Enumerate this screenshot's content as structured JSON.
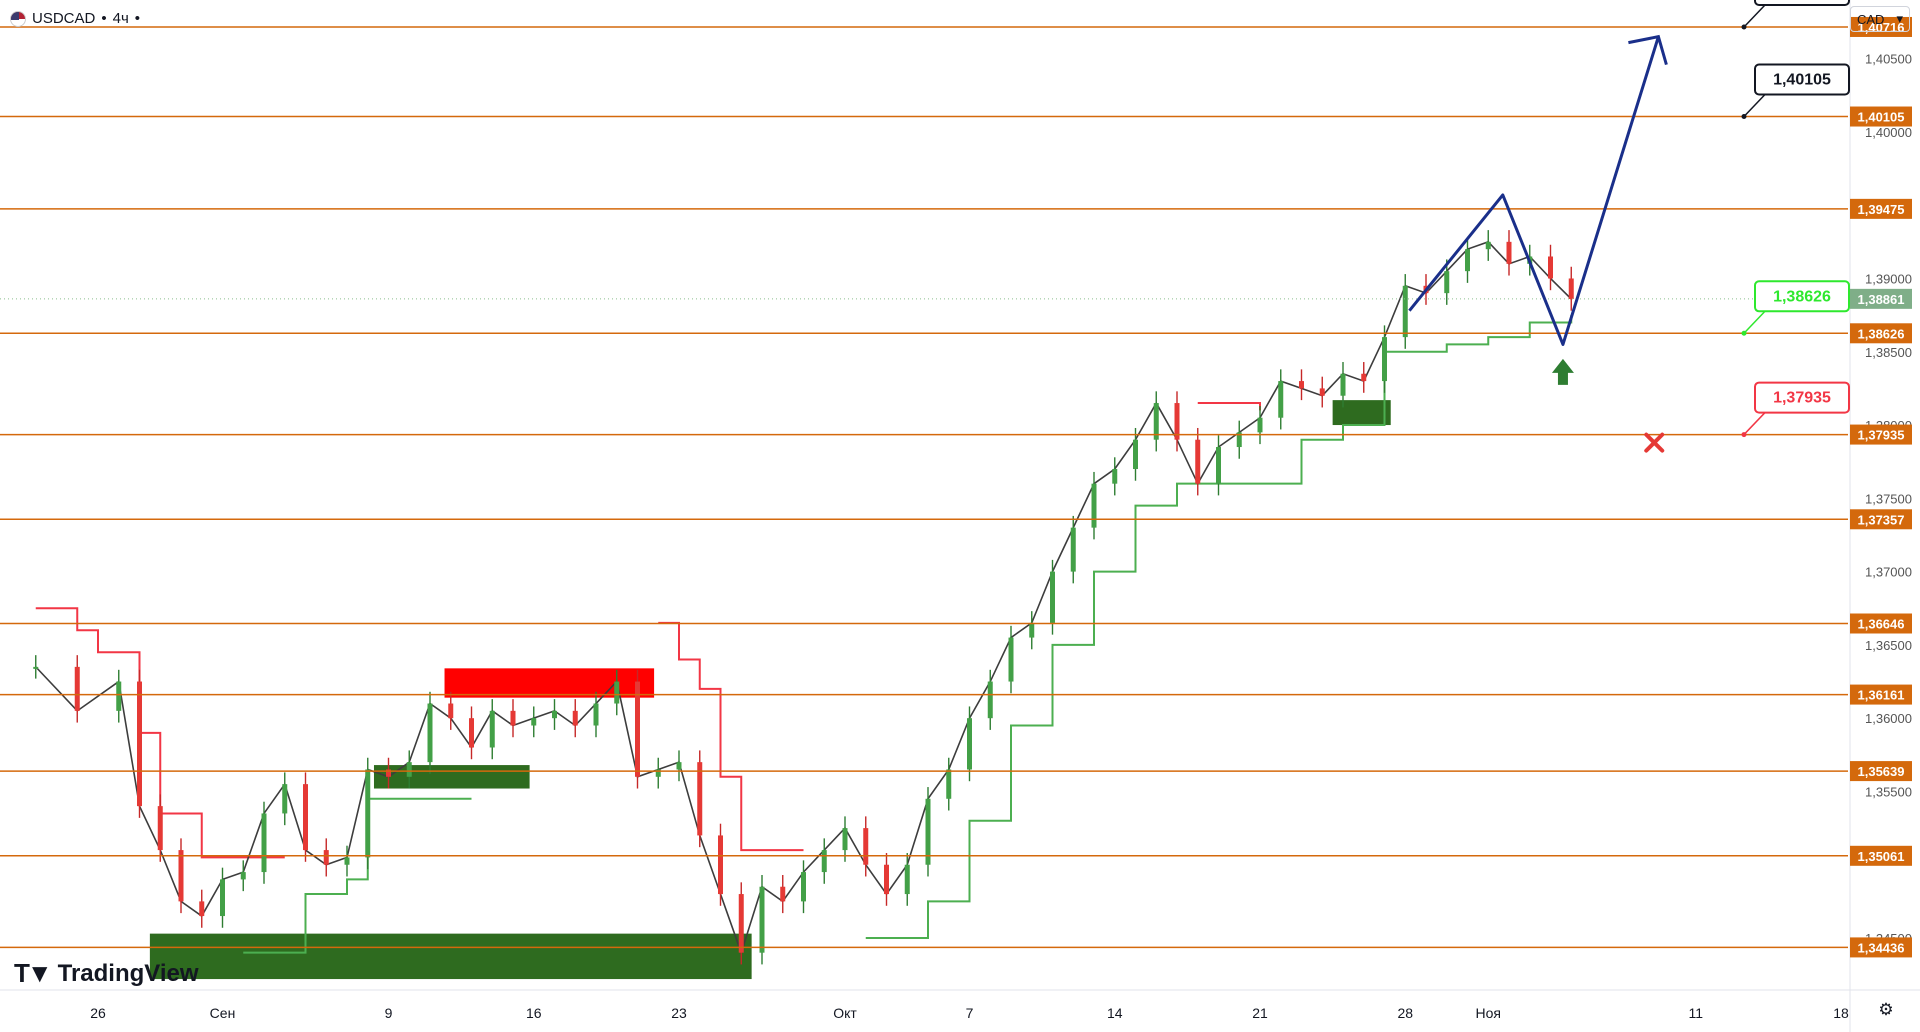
{
  "header": {
    "symbol": "USDCAD",
    "sep1": "•",
    "timeframe": "4ч",
    "sep2": "•"
  },
  "currency_selector": {
    "value": "CAD",
    "chevron": "▾"
  },
  "brand": {
    "name": "TradingView"
  },
  "icons": {
    "settings": "settings-icon",
    "flag": "us-flag-icon"
  },
  "colors": {
    "level_line": "#d4690c",
    "bullish": "#4caf50",
    "bearish": "#f23645",
    "projection": "#1a2f8a",
    "up_arrow": "#2e7d32",
    "green_zone": "#2e6b1f",
    "red_zone": "#ff0000"
  },
  "chart_data": {
    "type": "line",
    "title": "USDCAD",
    "timeframe": "4ч",
    "ylim": [
      1.342,
      1.409
    ],
    "x_ticks": [
      {
        "label": "26",
        "day": 0
      },
      {
        "label": "Сен",
        "day": 6
      },
      {
        "label": "9",
        "day": 14
      },
      {
        "label": "16",
        "day": 21
      },
      {
        "label": "23",
        "day": 28
      },
      {
        "label": "Окт",
        "day": 36
      },
      {
        "label": "7",
        "day": 42
      },
      {
        "label": "14",
        "day": 49
      },
      {
        "label": "21",
        "day": 56
      },
      {
        "label": "28",
        "day": 63
      },
      {
        "label": "Ноя",
        "day": 67
      },
      {
        "label": "11",
        "day": 77
      },
      {
        "label": "18",
        "day": 84
      }
    ],
    "y_ticks": [
      "1,40500",
      "1,40000",
      "1,39000",
      "1,38500",
      "1,38000",
      "1,37500",
      "1,37000",
      "1,36500",
      "1,36000",
      "1,35500",
      "1,34500"
    ],
    "y_tick_values": [
      1.405,
      1.4,
      1.39,
      1.385,
      1.38,
      1.375,
      1.37,
      1.365,
      1.36,
      1.355,
      1.345
    ],
    "levels": [
      {
        "label": "1,40716",
        "value": 1.40716
      },
      {
        "label": "1,40105",
        "value": 1.40105
      },
      {
        "label": "1,39475",
        "value": 1.39475
      },
      {
        "label": "1,38626",
        "value": 1.38626
      },
      {
        "label": "1,37935",
        "value": 1.37935
      },
      {
        "label": "1,37357",
        "value": 1.37357
      },
      {
        "label": "1,36646",
        "value": 1.36646
      },
      {
        "label": "1,36161",
        "value": 1.36161
      },
      {
        "label": "1,35639",
        "value": 1.35639
      },
      {
        "label": "1,35061",
        "value": 1.35061
      },
      {
        "label": "1,34436",
        "value": 1.34436
      }
    ],
    "current_price": {
      "label": "1,38861",
      "value": 1.38861
    },
    "callouts": [
      {
        "label": "1,40716",
        "value": 1.40716,
        "style": "target"
      },
      {
        "label": "1,40105",
        "value": 1.40105,
        "style": "target"
      },
      {
        "label": "1,38626",
        "value": 1.38626,
        "style": "entry"
      },
      {
        "label": "1,37935",
        "value": 1.37935,
        "style": "stop"
      }
    ],
    "price_path": [
      {
        "day": -3,
        "y": 1.3635
      },
      {
        "day": -1,
        "y": 1.3605
      },
      {
        "day": 1,
        "y": 1.3625
      },
      {
        "day": 2,
        "y": 1.354
      },
      {
        "day": 3,
        "y": 1.351
      },
      {
        "day": 4,
        "y": 1.3475
      },
      {
        "day": 5,
        "y": 1.3465
      },
      {
        "day": 6,
        "y": 1.349
      },
      {
        "day": 7,
        "y": 1.3495
      },
      {
        "day": 8,
        "y": 1.3535
      },
      {
        "day": 9,
        "y": 1.3555
      },
      {
        "day": 10,
        "y": 1.351
      },
      {
        "day": 11,
        "y": 1.35
      },
      {
        "day": 12,
        "y": 1.3505
      },
      {
        "day": 13,
        "y": 1.3565
      },
      {
        "day": 14,
        "y": 1.356
      },
      {
        "day": 15,
        "y": 1.357
      },
      {
        "day": 16,
        "y": 1.361
      },
      {
        "day": 17,
        "y": 1.36
      },
      {
        "day": 18,
        "y": 1.358
      },
      {
        "day": 19,
        "y": 1.3605
      },
      {
        "day": 20,
        "y": 1.3595
      },
      {
        "day": 21,
        "y": 1.36
      },
      {
        "day": 22,
        "y": 1.3605
      },
      {
        "day": 23,
        "y": 1.3595
      },
      {
        "day": 24,
        "y": 1.361
      },
      {
        "day": 25,
        "y": 1.3625
      },
      {
        "day": 26,
        "y": 1.356
      },
      {
        "day": 27,
        "y": 1.3565
      },
      {
        "day": 28,
        "y": 1.357
      },
      {
        "day": 29,
        "y": 1.352
      },
      {
        "day": 30,
        "y": 1.348
      },
      {
        "day": 31,
        "y": 1.344
      },
      {
        "day": 32,
        "y": 1.3485
      },
      {
        "day": 33,
        "y": 1.3475
      },
      {
        "day": 34,
        "y": 1.3495
      },
      {
        "day": 35,
        "y": 1.351
      },
      {
        "day": 36,
        "y": 1.3525
      },
      {
        "day": 37,
        "y": 1.35
      },
      {
        "day": 38,
        "y": 1.348
      },
      {
        "day": 39,
        "y": 1.35
      },
      {
        "day": 40,
        "y": 1.3545
      },
      {
        "day": 41,
        "y": 1.3565
      },
      {
        "day": 42,
        "y": 1.36
      },
      {
        "day": 43,
        "y": 1.3625
      },
      {
        "day": 44,
        "y": 1.3655
      },
      {
        "day": 45,
        "y": 1.3665
      },
      {
        "day": 46,
        "y": 1.37
      },
      {
        "day": 47,
        "y": 1.373
      },
      {
        "day": 48,
        "y": 1.376
      },
      {
        "day": 49,
        "y": 1.377
      },
      {
        "day": 50,
        "y": 1.379
      },
      {
        "day": 51,
        "y": 1.3815
      },
      {
        "day": 52,
        "y": 1.379
      },
      {
        "day": 53,
        "y": 1.376
      },
      {
        "day": 54,
        "y": 1.3785
      },
      {
        "day": 55,
        "y": 1.3795
      },
      {
        "day": 56,
        "y": 1.3805
      },
      {
        "day": 57,
        "y": 1.383
      },
      {
        "day": 58,
        "y": 1.3825
      },
      {
        "day": 59,
        "y": 1.382
      },
      {
        "day": 60,
        "y": 1.3835
      },
      {
        "day": 61,
        "y": 1.383
      },
      {
        "day": 62,
        "y": 1.386
      },
      {
        "day": 63,
        "y": 1.3895
      },
      {
        "day": 64,
        "y": 1.389
      },
      {
        "day": 65,
        "y": 1.3905
      },
      {
        "day": 66,
        "y": 1.392
      },
      {
        "day": 67,
        "y": 1.3925
      },
      {
        "day": 68,
        "y": 1.391
      },
      {
        "day": 69,
        "y": 1.3915
      },
      {
        "day": 70,
        "y": 1.39
      },
      {
        "day": 71,
        "y": 1.3886
      }
    ],
    "supertrend_bull": [
      {
        "day": 7,
        "y": 1.344
      },
      {
        "day": 10,
        "y": 1.348
      },
      {
        "day": 12,
        "y": 1.349
      },
      {
        "day": 13,
        "y": 1.3545
      },
      {
        "day": 18,
        "y": 1.3545
      },
      {
        "day": 37,
        "y": 1.345
      },
      {
        "day": 40,
        "y": 1.3475
      },
      {
        "day": 42,
        "y": 1.353
      },
      {
        "day": 44,
        "y": 1.3595
      },
      {
        "day": 46,
        "y": 1.365
      },
      {
        "day": 48,
        "y": 1.37
      },
      {
        "day": 50,
        "y": 1.3745
      },
      {
        "day": 52,
        "y": 1.376
      },
      {
        "day": 58,
        "y": 1.379
      },
      {
        "day": 60,
        "y": 1.38
      },
      {
        "day": 62,
        "y": 1.385
      },
      {
        "day": 65,
        "y": 1.3855
      },
      {
        "day": 67,
        "y": 1.386
      },
      {
        "day": 69,
        "y": 1.387
      },
      {
        "day": 71,
        "y": 1.3875
      }
    ],
    "supertrend_bear": [
      {
        "day": -3,
        "y": 1.3675
      },
      {
        "day": -1,
        "y": 1.366
      },
      {
        "day": 0,
        "y": 1.3645
      },
      {
        "day": 2,
        "y": 1.359
      },
      {
        "day": 3,
        "y": 1.3535
      },
      {
        "day": 5,
        "y": 1.3505
      },
      {
        "day": 9,
        "y": 1.3505
      },
      {
        "day": 27,
        "y": 1.3665
      },
      {
        "day": 28,
        "y": 1.364
      },
      {
        "day": 29,
        "y": 1.362
      },
      {
        "day": 30,
        "y": 1.356
      },
      {
        "day": 31,
        "y": 1.351
      },
      {
        "day": 34,
        "y": 1.351
      },
      {
        "day": 53,
        "y": 1.3815
      },
      {
        "day": 56,
        "y": 1.381
      }
    ],
    "zones": [
      {
        "kind": "demand",
        "x0": 2.5,
        "x1": 31.5,
        "y0": 1.3422,
        "y1": 1.3453
      },
      {
        "kind": "demand",
        "x0": 13.3,
        "x1": 20.8,
        "y0": 1.3552,
        "y1": 1.3568
      },
      {
        "kind": "demand",
        "x0": 59.5,
        "x1": 62.3,
        "y0": 1.38,
        "y1": 1.3817
      },
      {
        "kind": "supply",
        "x0": 16.7,
        "x1": 26.8,
        "y0": 1.3614,
        "y1": 1.3634
      }
    ],
    "projection": [
      {
        "day": 63.2,
        "y": 1.3878
      },
      {
        "day": 67.7,
        "y": 1.3957
      },
      {
        "day": 70.6,
        "y": 1.3855
      },
      {
        "day": 75.2,
        "y": 1.4065
      }
    ],
    "signals": [
      {
        "kind": "up-arrow",
        "day": 70.6,
        "y": 1.3837
      },
      {
        "kind": "stop-cross",
        "day": 75,
        "y": 1.3788
      }
    ]
  }
}
